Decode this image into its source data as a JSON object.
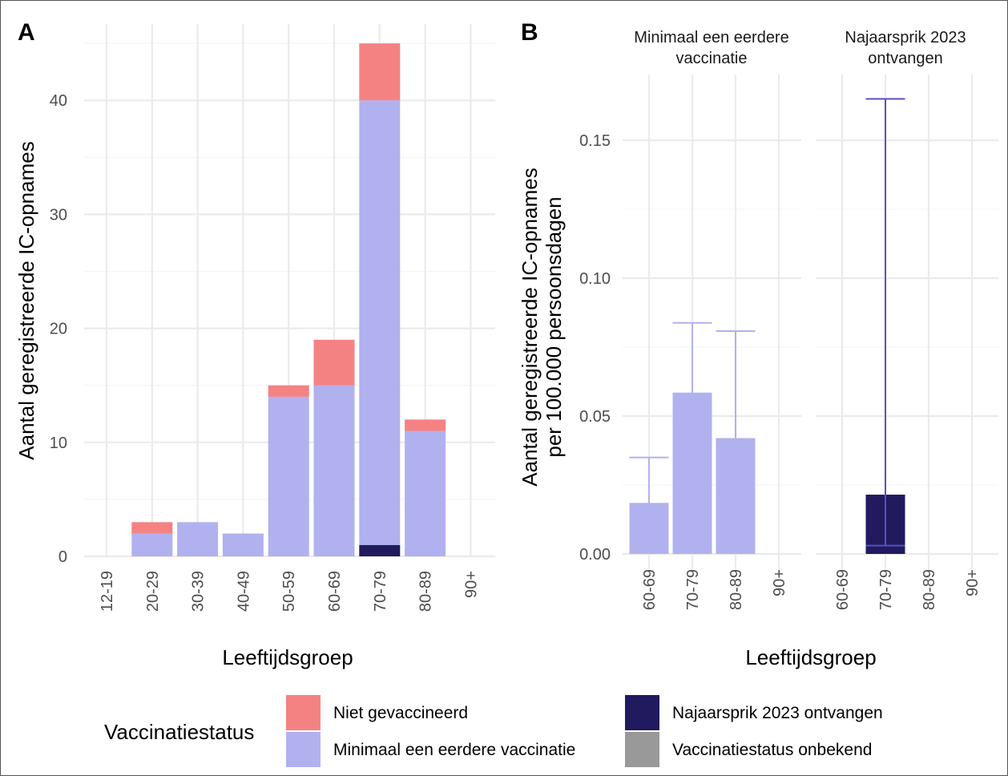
{
  "chart_data": [
    {
      "panel_tag": "A",
      "type": "bar",
      "stacked": true,
      "categories": [
        "12-19",
        "20-29",
        "30-39",
        "40-49",
        "50-59",
        "60-69",
        "70-79",
        "80-89",
        "90+"
      ],
      "series": [
        {
          "name": "Najaarsprik 2023 ontvangen",
          "color": "#221a5e",
          "values": [
            0,
            0,
            0,
            0,
            0,
            0,
            1,
            0,
            0
          ]
        },
        {
          "name": "Minimaal een eerdere vaccinatie",
          "color": "#b1b1ef",
          "values": [
            0,
            2,
            3,
            2,
            14,
            15,
            39,
            11,
            0
          ]
        },
        {
          "name": "Niet gevaccineerd",
          "color": "#f58282",
          "values": [
            0,
            1,
            0,
            0,
            1,
            4,
            5,
            1,
            0
          ]
        }
      ],
      "xlabel": "Leeftijdsgroep",
      "ylabel": "Aantal geregistreerde IC-opnames",
      "ylim": [
        0,
        47
      ],
      "yticks": [
        0,
        10,
        20,
        30,
        40
      ],
      "grid": true
    },
    {
      "panel_tag": "B",
      "type": "bar",
      "error_bars": true,
      "facets": [
        {
          "label": "Minimaal een eerdere vaccinatie",
          "strip_lines": [
            "Minimaal een eerdere",
            "vaccinatie"
          ],
          "color": "#b1b1ef",
          "categories": [
            "60-69",
            "70-79",
            "80-89",
            "90+"
          ],
          "values": [
            0.0185,
            0.0585,
            0.042,
            null
          ],
          "lower": [
            0.0095,
            0.041,
            0.022,
            null
          ],
          "upper": [
            0.035,
            0.0838,
            0.0808,
            null
          ]
        },
        {
          "label": "Najaarsprik 2023 ontvangen",
          "strip_lines": [
            "Najaarsprik 2023",
            "ontvangen"
          ],
          "color": "#221a5e",
          "errorbar_color": "#5a50c0",
          "categories": [
            "60-69",
            "70-79",
            "80-89",
            "90+"
          ],
          "values": [
            null,
            0.0215,
            null,
            null
          ],
          "lower": [
            null,
            0.003,
            null,
            null
          ],
          "upper": [
            null,
            0.165,
            null,
            null
          ]
        }
      ],
      "xlabel": "Leeftijdsgroep",
      "ylabel_lines": [
        "Aantal geregistreerde IC-opnames",
        "per 100.000 persoonsdagen"
      ],
      "ylim": [
        0,
        0.175
      ],
      "yticks": [
        "0.00",
        "0.05",
        "0.10",
        "0.15"
      ],
      "grid": true
    }
  ],
  "legend": {
    "title": "Vaccinatiestatus",
    "position": "bottom",
    "items": [
      {
        "label": "Niet gevaccineerd",
        "color": "#f58282"
      },
      {
        "label": "Minimaal een eerdere vaccinatie",
        "color": "#b1b1ef"
      },
      {
        "label": "Najaarsprik 2023 ontvangen",
        "color": "#221a5e"
      },
      {
        "label": "Vaccinatiestatus onbekend",
        "color": "#999999"
      }
    ]
  }
}
